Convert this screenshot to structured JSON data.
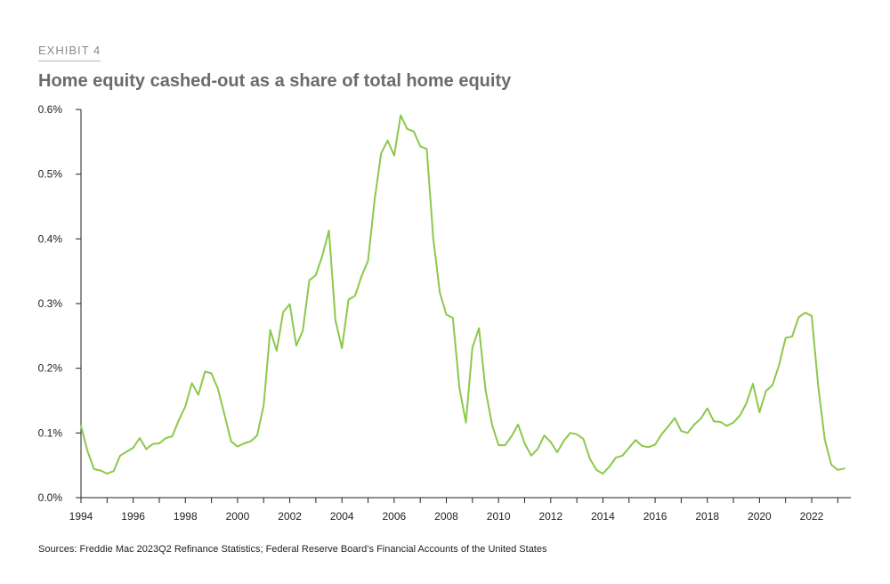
{
  "header": {
    "exhibit_label": "EXHIBIT 4",
    "title": "Home equity cashed-out as a share of total home equity"
  },
  "footer": {
    "source": "Sources: Freddie Mac 2023Q2 Refinance Statistics; Federal Reserve Board’s Financial Accounts of the United States"
  },
  "colors": {
    "line": "#8cc84b",
    "axis": "#222222"
  },
  "chart_data": {
    "type": "line",
    "title": "Home equity cashed-out as a share of total home equity",
    "xlabel": "",
    "ylabel": "",
    "xlim": [
      1994,
      2023.5
    ],
    "ylim": [
      0,
      0.6
    ],
    "y_ticks": [
      0,
      0.1,
      0.2,
      0.3,
      0.4,
      0.5,
      0.6
    ],
    "y_tick_labels": [
      "0.0%",
      "0.1%",
      "0.2%",
      "0.3%",
      "0.4%",
      "0.5%",
      "0.6%"
    ],
    "x_ticks": [
      1994,
      1996,
      1998,
      2000,
      2002,
      2004,
      2006,
      2008,
      2010,
      2012,
      2014,
      2016,
      2018,
      2020,
      2022
    ],
    "x_tick_labels": [
      "1994",
      "1996",
      "1998",
      "2000",
      "2002",
      "2004",
      "2006",
      "2008",
      "2010",
      "2012",
      "2014",
      "2016",
      "2018",
      "2020",
      "2022"
    ],
    "grid": false,
    "legend": "none",
    "series": [
      {
        "x": [
          1994.0,
          1994.25,
          1994.5,
          1994.75,
          1995.0,
          1995.25,
          1995.5,
          1995.75,
          1996.0,
          1996.25,
          1996.5,
          1996.75,
          1997.0,
          1997.25,
          1997.5,
          1997.75,
          1998.0,
          1998.25,
          1998.5,
          1998.75,
          1999.0,
          1999.25,
          1999.5,
          1999.75,
          2000.0,
          2000.25,
          2000.5,
          2000.75,
          2001.0,
          2001.25,
          2001.5,
          2001.75,
          2002.0,
          2002.25,
          2002.5,
          2002.75,
          2003.0,
          2003.25,
          2003.5,
          2003.75,
          2004.0,
          2004.25,
          2004.5,
          2004.75,
          2005.0,
          2005.25,
          2005.5,
          2005.75,
          2006.0,
          2006.25,
          2006.5,
          2006.75,
          2007.0,
          2007.25,
          2007.5,
          2007.75,
          2008.0,
          2008.25,
          2008.5,
          2008.75,
          2009.0,
          2009.25,
          2009.5,
          2009.75,
          2010.0,
          2010.25,
          2010.5,
          2010.75,
          2011.0,
          2011.25,
          2011.5,
          2011.75,
          2012.0,
          2012.25,
          2012.5,
          2012.75,
          2013.0,
          2013.25,
          2013.5,
          2013.75,
          2014.0,
          2014.25,
          2014.5,
          2014.75,
          2015.0,
          2015.25,
          2015.5,
          2015.75,
          2016.0,
          2016.25,
          2016.5,
          2016.75,
          2017.0,
          2017.25,
          2017.5,
          2017.75,
          2018.0,
          2018.25,
          2018.5,
          2018.75,
          2019.0,
          2019.25,
          2019.5,
          2019.75,
          2020.0,
          2020.25,
          2020.5,
          2020.75,
          2021.0,
          2021.25,
          2021.5,
          2021.75,
          2022.0,
          2022.25,
          2022.5,
          2022.75,
          2023.0,
          2023.25
        ],
        "values": [
          0.111,
          0.072,
          0.044,
          0.042,
          0.037,
          0.041,
          0.065,
          0.071,
          0.077,
          0.092,
          0.075,
          0.083,
          0.084,
          0.092,
          0.095,
          0.12,
          0.141,
          0.177,
          0.159,
          0.195,
          0.192,
          0.168,
          0.128,
          0.087,
          0.079,
          0.084,
          0.087,
          0.096,
          0.143,
          0.259,
          0.227,
          0.287,
          0.299,
          0.235,
          0.258,
          0.336,
          0.344,
          0.374,
          0.413,
          0.274,
          0.231,
          0.306,
          0.312,
          0.342,
          0.366,
          0.46,
          0.532,
          0.552,
          0.529,
          0.591,
          0.57,
          0.566,
          0.543,
          0.539,
          0.401,
          0.317,
          0.283,
          0.278,
          0.17,
          0.116,
          0.232,
          0.262,
          0.167,
          0.113,
          0.081,
          0.081,
          0.095,
          0.113,
          0.084,
          0.065,
          0.075,
          0.096,
          0.086,
          0.07,
          0.088,
          0.1,
          0.098,
          0.091,
          0.06,
          0.043,
          0.037,
          0.048,
          0.062,
          0.065,
          0.077,
          0.089,
          0.08,
          0.078,
          0.082,
          0.098,
          0.11,
          0.123,
          0.103,
          0.1,
          0.113,
          0.122,
          0.138,
          0.118,
          0.117,
          0.111,
          0.116,
          0.127,
          0.146,
          0.176,
          0.132,
          0.165,
          0.174,
          0.205,
          0.247,
          0.249,
          0.279,
          0.286,
          0.281,
          0.173,
          0.09,
          0.051,
          0.043,
          0.045
        ]
      }
    ]
  }
}
